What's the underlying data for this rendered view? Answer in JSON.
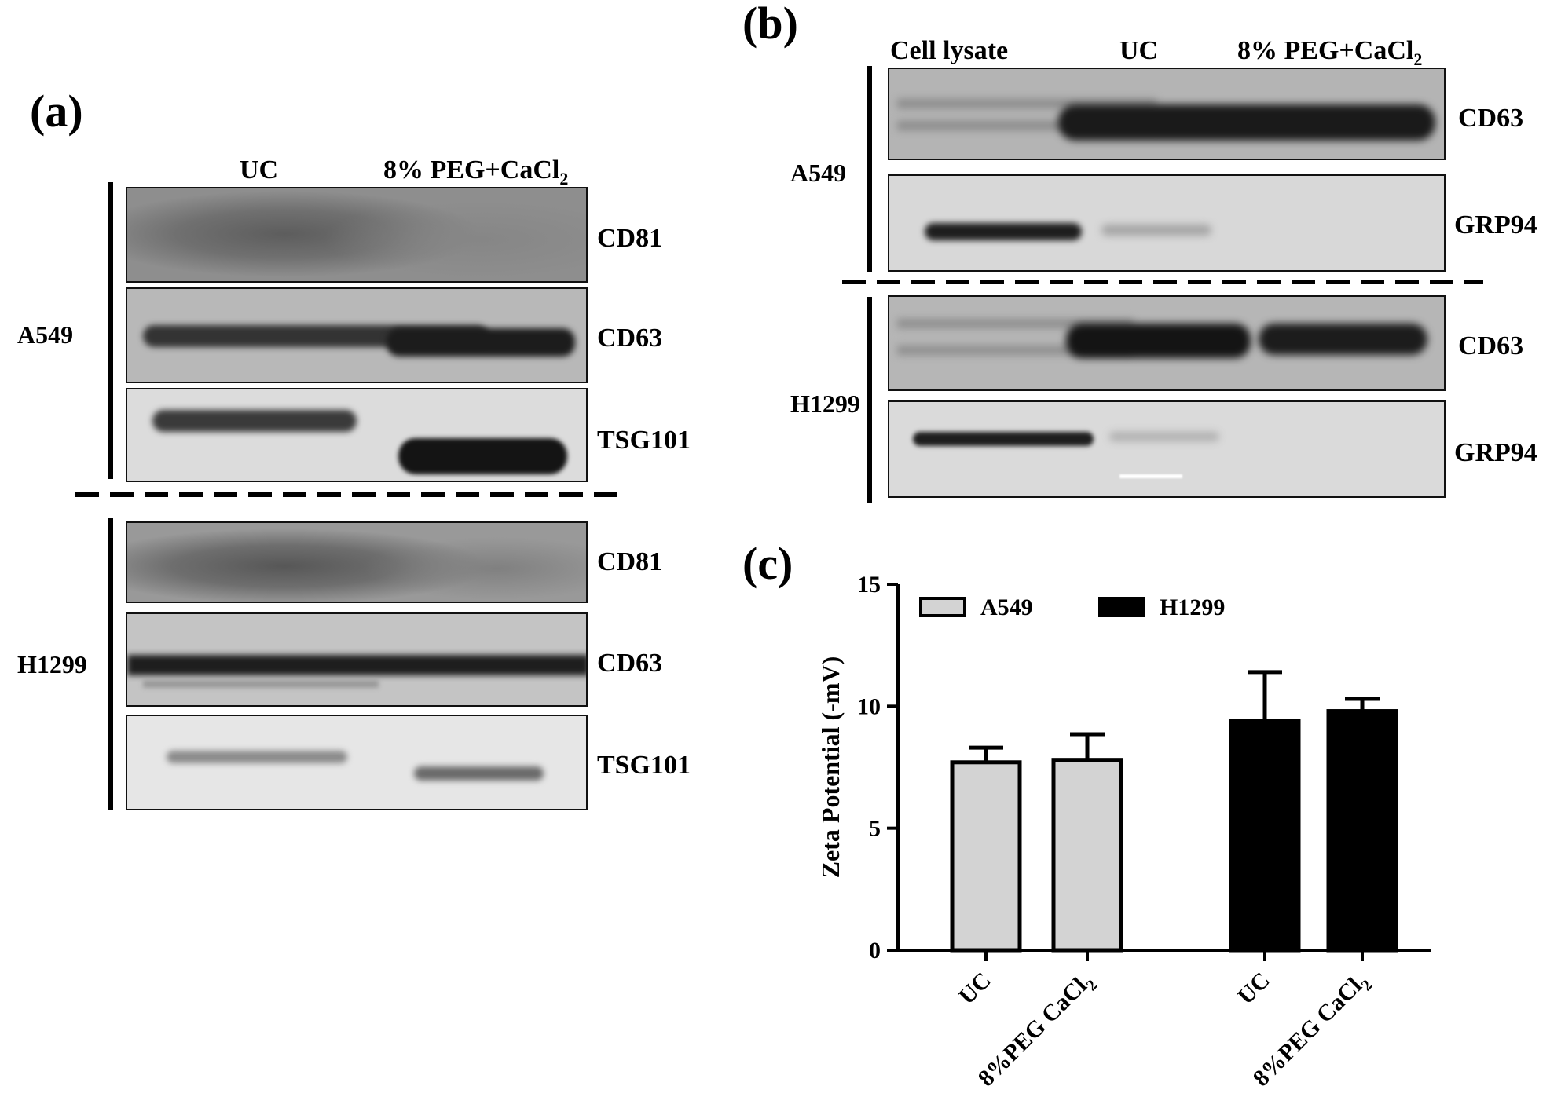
{
  "panel_a": {
    "letter": "(a)",
    "columns": [
      "UC",
      "8% PEG+CaCl",
      "2"
    ],
    "groups": [
      {
        "cell_line": "A549",
        "bands": [
          "CD81",
          "CD63",
          "TSG101"
        ]
      },
      {
        "cell_line": "H1299",
        "bands": [
          "CD81",
          "CD63",
          "TSG101"
        ]
      }
    ]
  },
  "panel_b": {
    "letter": "(b)",
    "columns": [
      "Cell lysate",
      "UC",
      "8% PEG+CaCl",
      "2"
    ],
    "groups": [
      {
        "cell_line": "A549",
        "bands": [
          "CD63",
          "GRP94"
        ]
      },
      {
        "cell_line": "H1299",
        "bands": [
          "CD63",
          "GRP94"
        ]
      }
    ]
  },
  "panel_c": {
    "letter": "(c)",
    "legend": [
      {
        "name": "A549",
        "color": "#d3d3d3"
      },
      {
        "name": "H1299",
        "color": "#000000"
      }
    ]
  },
  "chart_data": {
    "type": "bar",
    "title": "",
    "ylabel": "Zeta Potential (-mV)",
    "xlabel": "",
    "ylim": [
      0,
      15
    ],
    "yticks": [
      "0",
      "5",
      "10",
      "15"
    ],
    "categories": [
      "UC",
      "8%PEG CaCl2",
      "UC",
      "8%PEG CaCl2"
    ],
    "category_labels": [
      {
        "main": "UC",
        "sub": ""
      },
      {
        "main": "8%PEG CaCl",
        "sub": "2"
      },
      {
        "main": "UC",
        "sub": ""
      },
      {
        "main": "8%PEG CaCl",
        "sub": "2"
      }
    ],
    "series": [
      {
        "name": "A549",
        "color": "#d3d3d3",
        "values": [
          7.7,
          7.8,
          null,
          null
        ],
        "errors": [
          0.6,
          1.05,
          null,
          null
        ]
      },
      {
        "name": "H1299",
        "color": "#000000",
        "values": [
          null,
          null,
          9.4,
          9.8
        ],
        "errors": [
          null,
          null,
          2.0,
          0.5
        ]
      }
    ],
    "grid": false,
    "legend_position": "top"
  }
}
